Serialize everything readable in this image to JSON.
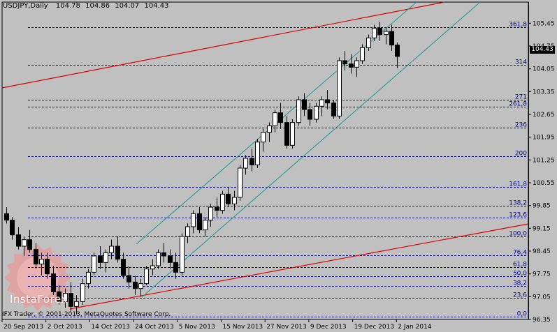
{
  "header": {
    "symbol": "USDJPY,Daily",
    "open": "104.78",
    "high": "104.86",
    "low": "104.07",
    "close": "104.43"
  },
  "copyright": "IFX Trader, © 2001-2013, MetaQuotes Software Corp.",
  "watermark": "InstaForex",
  "current_price_tag": "104.43",
  "colors": {
    "background": "#c0c0c0",
    "candle_body": "#000000",
    "bull_candle": "#ffffff",
    "fib_level": "#00008b",
    "long_channel": "#e00000",
    "short_channel": "#1a9a8a"
  },
  "chart_data": {
    "type": "candlestick",
    "symbol": "USDJPY",
    "timeframe": "Daily",
    "y_axis": {
      "ylim": [
        96.35,
        106.1
      ],
      "ticks": [
        "105.45",
        "104.75",
        "104.05",
        "103.35",
        "102.65",
        "101.95",
        "101.25",
        "100.55",
        "99.85",
        "99.15",
        "98.45",
        "97.75",
        "97.05",
        "96.35"
      ]
    },
    "x_axis": {
      "ticks": [
        "20 Sep 2013",
        "2 Oct 2013",
        "14 Oct 2013",
        "24 Oct 2013",
        "5 Nov 2013",
        "15 Nov 2013",
        "27 Nov 2013",
        "9 Dec 2013",
        "19 Dec 2013",
        "2 Jan 2014"
      ]
    },
    "fib_levels": [
      {
        "label": "361,8",
        "price": 105.32
      },
      {
        "label": "314",
        "price": 104.17
      },
      {
        "label": "271",
        "price": 103.1
      },
      {
        "label": "261,8",
        "price": 102.88
      },
      {
        "label": "236",
        "price": 102.25
      },
      {
        "label": "200",
        "price": 101.36
      },
      {
        "label": "161,8",
        "price": 100.42
      },
      {
        "label": "138,2",
        "price": 99.84
      },
      {
        "label": "123,6",
        "price": 99.48
      },
      {
        "label": "100,0",
        "price": 98.9
      },
      {
        "label": "76,4",
        "price": 98.32
      },
      {
        "label": "61,8",
        "price": 97.96
      },
      {
        "label": "50,0",
        "price": 97.67
      },
      {
        "label": "38,2",
        "price": 97.38
      },
      {
        "label": "23,6",
        "price": 97.02
      },
      {
        "label": "0,0",
        "price": 96.44
      }
    ],
    "candles": [
      [
        99.6,
        99.8,
        99.3,
        99.4
      ],
      [
        99.4,
        99.5,
        98.8,
        98.95
      ],
      [
        98.95,
        99.2,
        98.5,
        98.6
      ],
      [
        98.6,
        98.9,
        98.3,
        98.8
      ],
      [
        98.8,
        99.1,
        98.4,
        98.5
      ],
      [
        98.5,
        98.7,
        97.9,
        98.05
      ],
      [
        98.05,
        98.4,
        97.7,
        98.2
      ],
      [
        98.2,
        98.4,
        97.6,
        97.75
      ],
      [
        97.75,
        98.0,
        97.1,
        97.2
      ],
      [
        97.2,
        97.4,
        96.8,
        96.9
      ],
      [
        96.9,
        97.3,
        96.7,
        97.15
      ],
      [
        97.15,
        97.5,
        96.6,
        96.75
      ],
      [
        96.75,
        97.1,
        96.5,
        96.9
      ],
      [
        96.9,
        97.6,
        96.8,
        97.45
      ],
      [
        97.45,
        97.9,
        97.3,
        97.8
      ],
      [
        97.8,
        98.4,
        97.7,
        98.3
      ],
      [
        98.3,
        98.6,
        97.9,
        98.1
      ],
      [
        98.1,
        98.5,
        97.8,
        98.4
      ],
      [
        98.4,
        98.8,
        98.2,
        98.6
      ],
      [
        98.6,
        98.9,
        98.1,
        98.2
      ],
      [
        98.2,
        98.4,
        97.6,
        97.7
      ],
      [
        97.7,
        98.0,
        97.3,
        97.5
      ],
      [
        97.5,
        97.7,
        97.1,
        97.3
      ],
      [
        97.3,
        97.6,
        97.05,
        97.45
      ],
      [
        97.45,
        98.0,
        97.4,
        97.9
      ],
      [
        97.9,
        98.2,
        97.7,
        98.0
      ],
      [
        98.0,
        98.5,
        97.9,
        98.4
      ],
      [
        98.4,
        98.7,
        98.1,
        98.3
      ],
      [
        98.3,
        98.5,
        97.9,
        98.1
      ],
      [
        98.1,
        98.4,
        97.6,
        97.8
      ],
      [
        97.8,
        99.0,
        97.7,
        98.9
      ],
      [
        98.9,
        99.3,
        98.7,
        99.2
      ],
      [
        99.2,
        99.7,
        99.0,
        99.6
      ],
      [
        99.6,
        99.8,
        99.0,
        99.1
      ],
      [
        99.1,
        99.5,
        98.9,
        99.4
      ],
      [
        99.4,
        99.9,
        99.2,
        99.8
      ],
      [
        99.8,
        100.1,
        99.5,
        99.7
      ],
      [
        99.7,
        100.3,
        99.6,
        100.2
      ],
      [
        100.2,
        100.4,
        99.8,
        99.9
      ],
      [
        99.9,
        100.3,
        99.7,
        100.1
      ],
      [
        100.1,
        101.1,
        100.0,
        101.0
      ],
      [
        101.0,
        101.4,
        100.8,
        101.3
      ],
      [
        101.3,
        101.6,
        100.9,
        101.1
      ],
      [
        101.1,
        101.9,
        101.0,
        101.8
      ],
      [
        101.8,
        102.2,
        101.5,
        102.1
      ],
      [
        102.1,
        102.4,
        101.8,
        102.3
      ],
      [
        102.3,
        102.8,
        102.1,
        102.7
      ],
      [
        102.7,
        103.0,
        102.2,
        102.4
      ],
      [
        102.4,
        102.6,
        101.6,
        101.7
      ],
      [
        101.7,
        102.5,
        101.6,
        102.4
      ],
      [
        102.4,
        103.2,
        102.3,
        103.1
      ],
      [
        103.1,
        103.3,
        102.6,
        102.8
      ],
      [
        102.8,
        103.0,
        102.3,
        102.5
      ],
      [
        102.5,
        103.0,
        102.4,
        102.9
      ],
      [
        102.9,
        103.2,
        102.6,
        103.1
      ],
      [
        103.1,
        103.4,
        102.8,
        103.0
      ],
      [
        103.0,
        103.1,
        102.5,
        102.6
      ],
      [
        102.6,
        104.4,
        102.5,
        104.3
      ],
      [
        104.3,
        104.6,
        104.0,
        104.2
      ],
      [
        104.2,
        104.5,
        103.9,
        104.1
      ],
      [
        104.1,
        104.4,
        103.8,
        104.3
      ],
      [
        104.3,
        104.8,
        104.2,
        104.7
      ],
      [
        104.7,
        105.1,
        104.6,
        105.0
      ],
      [
        105.0,
        105.4,
        104.9,
        105.3
      ],
      [
        105.3,
        105.5,
        104.9,
        105.1
      ],
      [
        105.1,
        105.3,
        104.8,
        105.2
      ],
      [
        105.2,
        105.4,
        104.6,
        104.78
      ],
      [
        104.78,
        104.86,
        104.07,
        104.43
      ]
    ]
  }
}
